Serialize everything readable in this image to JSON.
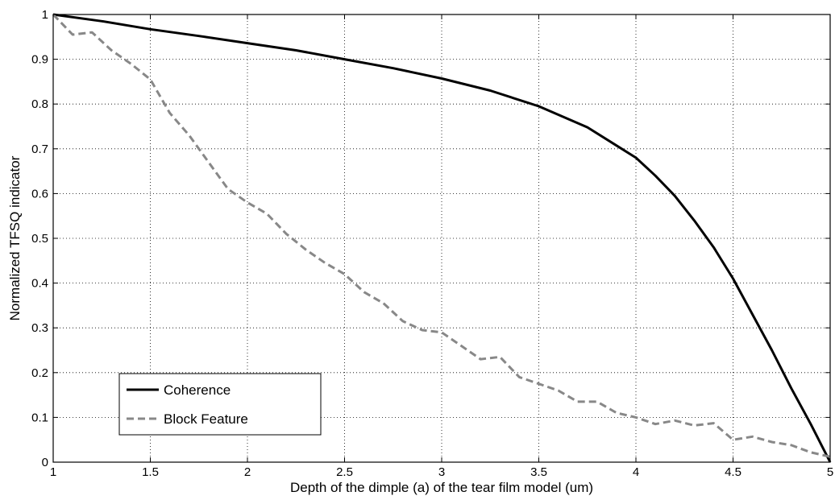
{
  "chart_data": {
    "type": "line",
    "title": "",
    "xlabel": "Depth of the dimple (a) of the tear film model (um)",
    "ylabel": "Normalized TFSQ indicator",
    "xlim": [
      1,
      5
    ],
    "ylim": [
      0,
      1
    ],
    "xticks": [
      1,
      1.5,
      2,
      2.5,
      3,
      3.5,
      4,
      4.5,
      5
    ],
    "xtick_labels": [
      "1",
      "1.5",
      "2",
      "2.5",
      "3",
      "3.5",
      "4",
      "4.5",
      "5"
    ],
    "yticks": [
      0,
      0.1,
      0.2,
      0.3,
      0.4,
      0.5,
      0.6,
      0.7,
      0.8,
      0.9,
      1
    ],
    "ytick_labels": [
      "0",
      "0.1",
      "0.2",
      "0.3",
      "0.4",
      "0.5",
      "0.6",
      "0.7",
      "0.8",
      "0.9",
      "1"
    ],
    "grid": true,
    "legend_position": "bottom-left",
    "series": [
      {
        "name": "Coherence",
        "color": "#000000",
        "style": "solid",
        "x": [
          1,
          1.25,
          1.5,
          1.75,
          2,
          2.25,
          2.5,
          2.75,
          3,
          3.25,
          3.5,
          3.75,
          4,
          4.1,
          4.2,
          4.3,
          4.4,
          4.5,
          4.6,
          4.7,
          4.8,
          4.9,
          5
        ],
        "y": [
          1.0,
          0.985,
          0.967,
          0.952,
          0.936,
          0.92,
          0.9,
          0.88,
          0.857,
          0.83,
          0.795,
          0.748,
          0.68,
          0.64,
          0.595,
          0.54,
          0.48,
          0.41,
          0.33,
          0.25,
          0.165,
          0.085,
          0.0
        ]
      },
      {
        "name": "Block Feature",
        "color": "#888888",
        "style": "dashed",
        "x": [
          1,
          1.1,
          1.2,
          1.3,
          1.4,
          1.5,
          1.6,
          1.7,
          1.8,
          1.9,
          2,
          2.1,
          2.2,
          2.3,
          2.4,
          2.5,
          2.6,
          2.7,
          2.8,
          2.9,
          3,
          3.1,
          3.2,
          3.3,
          3.4,
          3.5,
          3.6,
          3.7,
          3.8,
          3.9,
          4,
          4.1,
          4.2,
          4.3,
          4.4,
          4.5,
          4.6,
          4.7,
          4.8,
          4.9,
          5
        ],
        "y": [
          1.0,
          0.955,
          0.96,
          0.92,
          0.89,
          0.855,
          0.78,
          0.73,
          0.67,
          0.61,
          0.58,
          0.555,
          0.51,
          0.475,
          0.445,
          0.42,
          0.38,
          0.355,
          0.315,
          0.295,
          0.29,
          0.26,
          0.23,
          0.235,
          0.19,
          0.175,
          0.16,
          0.135,
          0.135,
          0.11,
          0.1,
          0.085,
          0.093,
          0.082,
          0.087,
          0.05,
          0.057,
          0.045,
          0.038,
          0.022,
          0.012
        ]
      }
    ]
  }
}
